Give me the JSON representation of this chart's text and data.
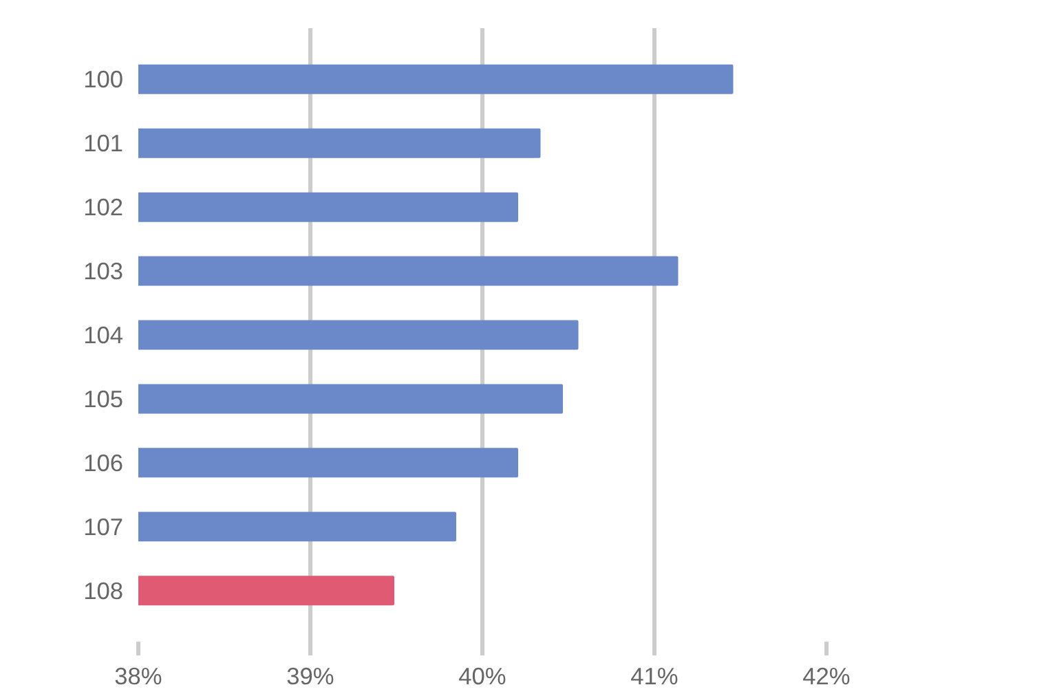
{
  "chart_data": {
    "type": "bar",
    "orientation": "horizontal",
    "categories": [
      "100",
      "101",
      "102",
      "103",
      "104",
      "105",
      "106",
      "107",
      "108"
    ],
    "values": [
      41.45,
      40.33,
      40.2,
      41.13,
      40.55,
      40.46,
      40.2,
      39.84,
      39.48
    ],
    "colors": [
      "#6b89c9",
      "#6b89c9",
      "#6b89c9",
      "#6b89c9",
      "#6b89c9",
      "#6b89c9",
      "#6b89c9",
      "#6b89c9",
      "#e05a73"
    ],
    "xlim": [
      38,
      42
    ],
    "xticks": [
      {
        "value": 38,
        "label": "38%"
      },
      {
        "value": 39,
        "label": "39%"
      },
      {
        "value": 40,
        "label": "40%"
      },
      {
        "value": 41,
        "label": "41%"
      },
      {
        "value": 42,
        "label": "42%"
      }
    ],
    "grid": "x"
  }
}
